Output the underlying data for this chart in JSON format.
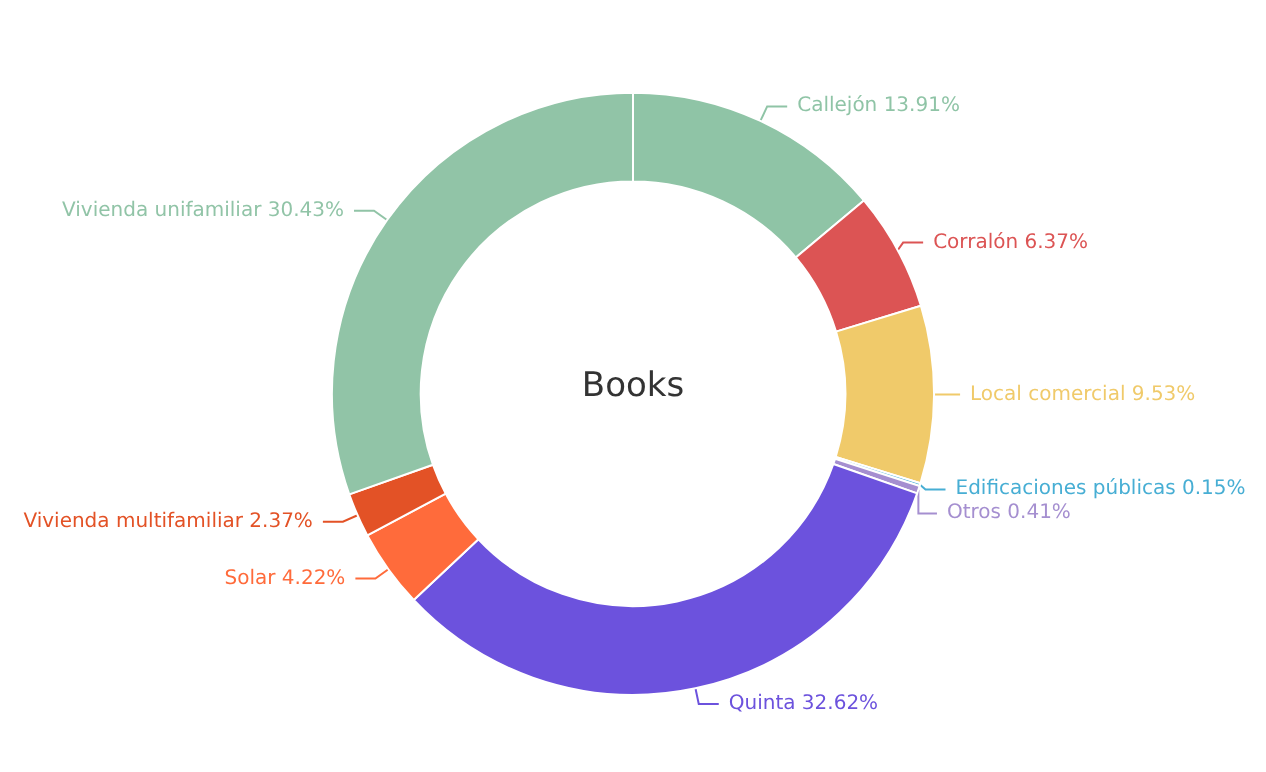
{
  "chart_data": {
    "type": "donut",
    "title": "Books",
    "categories": [
      "Callejón",
      "Corralón",
      "Local comercial",
      "Edificaciones públicas",
      "Otros",
      "Quinta",
      "Solar",
      "Vivienda multifamiliar",
      "Vivienda unifamiliar"
    ],
    "values": [
      13.91,
      6.37,
      9.53,
      0.15,
      0.41,
      32.62,
      4.22,
      2.37,
      30.43
    ],
    "value_labels": [
      "13.91%",
      "6.37%",
      "9.53%",
      "0.15%",
      "0.41%",
      "32.62%",
      "4.22%",
      "2.37%",
      "30.43%"
    ],
    "colors": [
      "#8fc4a6",
      "#dc5454",
      "#f0ca6a",
      "#47aed4",
      "#a58fd0",
      "#6c52dd",
      "#ff6b3b",
      "#e35226",
      "#91c4a7"
    ],
    "legend": false
  }
}
